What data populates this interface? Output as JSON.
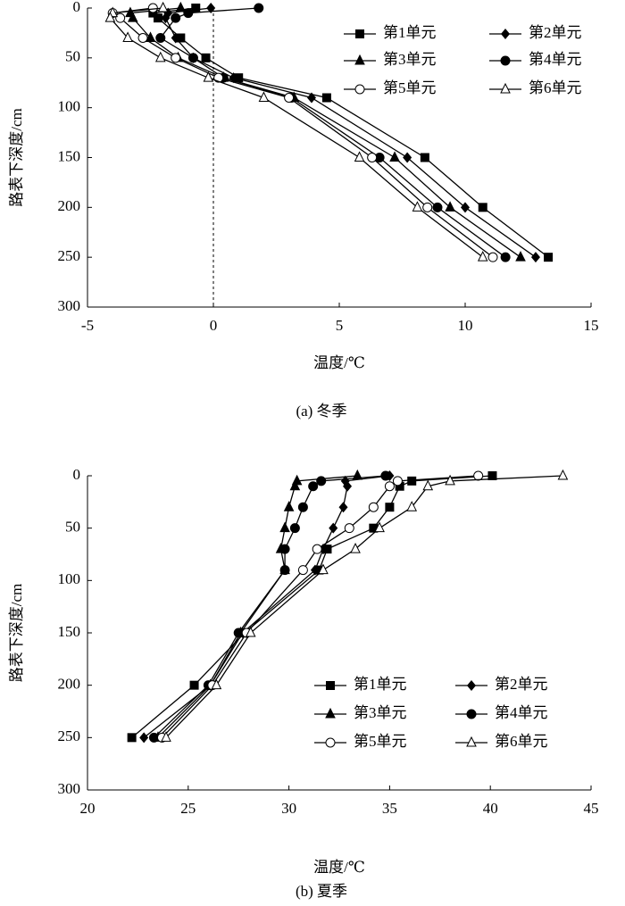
{
  "chart_data": [
    {
      "type": "line",
      "caption": "(a) 冬季",
      "xlabel": "温度/℃",
      "ylabel": "路表下深度/cm",
      "xlim": [
        -5,
        15
      ],
      "xticks": [
        -5,
        0,
        5,
        10,
        15
      ],
      "ylim": [
        0,
        300
      ],
      "yticks": [
        0,
        50,
        100,
        150,
        200,
        250,
        300
      ],
      "y_inverted": true,
      "reference_line_x": 0,
      "legend": "upper right",
      "y": [
        0,
        5,
        10,
        30,
        50,
        70,
        90,
        150,
        200,
        250
      ],
      "series": [
        {
          "name": "第1单元",
          "color": "#000000",
          "marker": "square",
          "values": [
            -0.7,
            -2.4,
            -2.2,
            -1.3,
            -0.3,
            1.0,
            4.5,
            8.4,
            10.7,
            13.3
          ]
        },
        {
          "name": "第2单元",
          "color": "#000000",
          "marker": "diamond",
          "values": [
            -0.1,
            -1.8,
            -1.9,
            -1.5,
            -0.8,
            0.8,
            3.9,
            7.7,
            10.0,
            12.8
          ]
        },
        {
          "name": "第3单元",
          "color": "#000000",
          "marker": "triangle",
          "values": [
            -1.3,
            -3.3,
            -3.2,
            -2.5,
            -1.4,
            0.4,
            3.2,
            7.2,
            9.4,
            12.2
          ]
        },
        {
          "name": "第4单元",
          "color": "#000000",
          "marker": "circle",
          "values": [
            1.8,
            -1.0,
            -1.5,
            -2.1,
            -0.8,
            0.4,
            3.1,
            6.6,
            8.9,
            11.6
          ]
        },
        {
          "name": "第5单元",
          "color": "#000000",
          "marker": "open-circle",
          "values": [
            -2.4,
            -4.0,
            -3.7,
            -2.8,
            -1.5,
            0.2,
            3.0,
            6.3,
            8.5,
            11.1
          ]
        },
        {
          "name": "第6单元",
          "color": "#000000",
          "marker": "open-triangle",
          "values": [
            -2.0,
            -4.0,
            -4.1,
            -3.4,
            -2.1,
            -0.2,
            2.0,
            5.8,
            8.1,
            10.7
          ]
        }
      ]
    },
    {
      "type": "line",
      "caption": "(b) 夏季",
      "xlabel": "温度/℃",
      "ylabel": "路表下深度/cm",
      "xlim": [
        20,
        45
      ],
      "xticks": [
        20,
        25,
        30,
        35,
        40,
        45
      ],
      "ylim": [
        0,
        300
      ],
      "yticks": [
        0,
        50,
        100,
        150,
        200,
        250,
        300
      ],
      "y_inverted": true,
      "legend": "lower right",
      "y": [
        0,
        5,
        10,
        30,
        50,
        70,
        90,
        150,
        200,
        250
      ],
      "series": [
        {
          "name": "第1单元",
          "color": "#000000",
          "marker": "square",
          "values": [
            40.1,
            36.1,
            35.5,
            35.0,
            34.2,
            31.9,
            31.5,
            27.8,
            25.3,
            22.2
          ]
        },
        {
          "name": "第2单元",
          "color": "#000000",
          "marker": "diamond",
          "values": [
            35.0,
            32.8,
            32.9,
            32.7,
            32.2,
            31.7,
            31.3,
            27.7,
            26.1,
            22.8
          ]
        },
        {
          "name": "第3单元",
          "color": "#000000",
          "marker": "triangle",
          "values": [
            33.4,
            30.4,
            30.3,
            30.0,
            29.8,
            29.6,
            29.8,
            27.6,
            26.1,
            23.5
          ]
        },
        {
          "name": "第4单元",
          "color": "#000000",
          "marker": "circle",
          "values": [
            34.8,
            31.6,
            31.2,
            30.7,
            30.3,
            29.8,
            29.8,
            27.5,
            26.0,
            23.3
          ]
        },
        {
          "name": "第5单元",
          "color": "#000000",
          "marker": "open-circle",
          "values": [
            39.4,
            35.4,
            35.0,
            34.2,
            33.0,
            31.4,
            30.7,
            27.9,
            26.2,
            23.7
          ]
        },
        {
          "name": "第6单元",
          "color": "#000000",
          "marker": "open-triangle",
          "values": [
            43.6,
            38.0,
            36.9,
            36.1,
            34.5,
            33.3,
            31.7,
            28.1,
            26.4,
            23.9
          ]
        }
      ]
    }
  ]
}
